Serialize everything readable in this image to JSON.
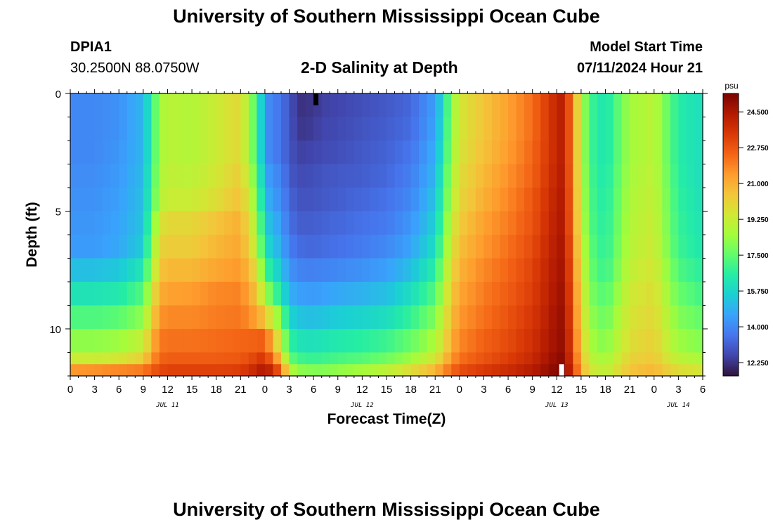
{
  "header": {
    "title": "University of Southern Mississippi Ocean Cube",
    "station_id": "DPIA1",
    "coordinates": "30.2500N  88.0750W",
    "subtitle": "2-D Salinity at Depth",
    "model_start_label": "Model Start Time",
    "model_start_value": "07/11/2024 Hour 21"
  },
  "footer": {
    "title": "University of Southern Mississippi Ocean Cube"
  },
  "colorbar": {
    "unit": "psu",
    "ticks": [
      "24.500",
      "22.750",
      "21.000",
      "19.250",
      "17.500",
      "15.750",
      "14.000",
      "12.250"
    ],
    "tick_values": [
      24.5,
      22.75,
      21.0,
      19.25,
      17.5,
      15.75,
      14.0,
      12.25
    ],
    "range": [
      11.6,
      25.4
    ],
    "colors": [
      "#30123b",
      "#4145ab",
      "#4675ed",
      "#39a2fc",
      "#1bcfd4",
      "#24eca6",
      "#61fc6c",
      "#a4fc3b",
      "#d1e834",
      "#f3c63a",
      "#fe9b2d",
      "#f36315",
      "#d93806",
      "#b11901",
      "#7a0402"
    ]
  },
  "chart_data": {
    "type": "heatmap",
    "title": "2-D Salinity at Depth",
    "xlabel": "Forecast Time(Z)",
    "ylabel": "Depth (ft)",
    "value_unit": "psu",
    "x_tick_labels": [
      "0",
      "3",
      "6",
      "9",
      "12",
      "15",
      "18",
      "21",
      "0",
      "3",
      "6",
      "9",
      "12",
      "15",
      "18",
      "21",
      "0",
      "3",
      "6",
      "9",
      "12",
      "15",
      "18",
      "21",
      "0",
      "3",
      "6"
    ],
    "x_range_hours": [
      0,
      78
    ],
    "day_labels": [
      {
        "text": "JUL 11",
        "hour": 12
      },
      {
        "text": "JUL 12",
        "hour": 36
      },
      {
        "text": "JUL 13",
        "hour": 60
      },
      {
        "text": "JUL 14",
        "hour": 75
      }
    ],
    "y_tick_labels": [
      "0",
      "5",
      "10"
    ],
    "y_tick_values": [
      0,
      5,
      10
    ],
    "y_range_ft": [
      0,
      12
    ],
    "depth_levels_ft": [
      0,
      1,
      2,
      3,
      4,
      5,
      6,
      7,
      8,
      9,
      10,
      11,
      11.5
    ],
    "sample_hours": [
      0,
      3,
      6,
      9,
      10,
      11,
      12,
      15,
      18,
      21,
      23,
      24,
      26,
      27,
      28,
      30,
      31,
      33,
      36,
      39,
      42,
      45,
      46,
      47,
      48,
      51,
      54,
      57,
      60,
      61,
      62,
      63,
      64,
      66,
      69,
      72,
      75,
      78
    ],
    "profiles": [
      {
        "depth_ft": 0,
        "salinity": [
          14.0,
          14.0,
          14.2,
          15.0,
          16.6,
          18.5,
          19.0,
          18.8,
          19.3,
          20.0,
          17.0,
          14.2,
          13.5,
          13.0,
          12.2,
          12.3,
          12.5,
          12.6,
          12.8,
          13.0,
          13.3,
          14.5,
          16.0,
          18.2,
          19.5,
          20.5,
          21.3,
          22.3,
          24.0,
          24.4,
          21.3,
          19.0,
          17.0,
          16.2,
          18.5,
          19.0,
          16.5,
          16.0
        ]
      },
      {
        "depth_ft": 1,
        "salinity": [
          14.0,
          14.0,
          14.2,
          15.0,
          16.6,
          18.5,
          19.0,
          18.8,
          19.3,
          20.0,
          17.0,
          14.2,
          13.5,
          13.0,
          12.3,
          12.4,
          12.6,
          12.7,
          12.9,
          13.1,
          13.4,
          14.6,
          16.2,
          18.2,
          19.5,
          20.5,
          21.3,
          22.3,
          24.0,
          24.4,
          21.3,
          19.0,
          17.0,
          16.2,
          18.5,
          19.0,
          16.5,
          16.0
        ]
      },
      {
        "depth_ft": 2,
        "salinity": [
          14.0,
          14.0,
          14.3,
          15.0,
          16.6,
          18.5,
          19.0,
          18.8,
          19.3,
          20.0,
          17.0,
          14.2,
          13.5,
          13.0,
          12.5,
          12.6,
          12.7,
          12.8,
          13.0,
          13.2,
          13.6,
          14.8,
          16.4,
          18.3,
          19.6,
          20.6,
          21.4,
          22.4,
          24.0,
          24.4,
          21.3,
          19.0,
          17.0,
          16.2,
          18.5,
          19.0,
          16.5,
          16.0
        ]
      },
      {
        "depth_ft": 3,
        "salinity": [
          14.1,
          14.1,
          14.4,
          15.1,
          16.8,
          18.6,
          19.1,
          19.0,
          19.5,
          20.3,
          17.5,
          14.6,
          13.8,
          13.1,
          12.7,
          12.8,
          12.9,
          13.0,
          13.1,
          13.3,
          13.8,
          15.0,
          16.8,
          18.5,
          19.8,
          20.8,
          21.6,
          22.5,
          24.1,
          24.4,
          21.4,
          19.1,
          17.1,
          16.3,
          18.6,
          19.1,
          16.6,
          16.0
        ]
      },
      {
        "depth_ft": 4,
        "salinity": [
          14.2,
          14.2,
          14.5,
          15.2,
          17.0,
          18.8,
          19.3,
          19.3,
          19.8,
          20.6,
          18.0,
          15.0,
          14.0,
          13.3,
          12.9,
          12.9,
          13.0,
          13.1,
          13.3,
          13.5,
          14.0,
          15.3,
          17.0,
          18.8,
          20.0,
          21.0,
          21.8,
          22.7,
          24.2,
          24.5,
          21.5,
          19.2,
          17.2,
          16.4,
          18.7,
          19.2,
          16.7,
          16.1
        ]
      },
      {
        "depth_ft": 5,
        "salinity": [
          14.3,
          14.3,
          14.6,
          15.3,
          17.5,
          19.5,
          20.0,
          20.0,
          20.5,
          21.0,
          18.6,
          15.5,
          14.4,
          13.5,
          13.1,
          13.1,
          13.2,
          13.3,
          13.5,
          13.7,
          14.3,
          15.6,
          17.4,
          19.2,
          20.3,
          21.3,
          22.0,
          22.8,
          24.3,
          24.5,
          21.6,
          19.3,
          17.3,
          16.5,
          18.8,
          19.3,
          16.8,
          16.2
        ]
      },
      {
        "depth_ft": 6,
        "salinity": [
          14.4,
          14.4,
          14.7,
          15.5,
          18.0,
          20.0,
          20.3,
          20.3,
          20.8,
          21.2,
          19.0,
          16.0,
          14.7,
          13.8,
          13.4,
          13.3,
          13.4,
          13.5,
          13.7,
          14.0,
          14.6,
          16.0,
          17.8,
          19.5,
          20.6,
          21.5,
          22.2,
          23.0,
          24.4,
          24.6,
          21.8,
          19.5,
          17.5,
          16.6,
          18.9,
          19.4,
          16.9,
          16.3
        ]
      },
      {
        "depth_ft": 7,
        "salinity": [
          15.2,
          15.2,
          15.4,
          16.3,
          18.5,
          20.4,
          20.8,
          20.8,
          21.2,
          21.5,
          19.8,
          17.0,
          15.3,
          14.3,
          13.9,
          13.8,
          13.9,
          14.0,
          14.2,
          14.5,
          15.2,
          16.6,
          18.3,
          19.9,
          20.9,
          21.8,
          22.4,
          23.2,
          24.5,
          24.7,
          22.0,
          19.7,
          17.7,
          16.8,
          19.1,
          19.6,
          17.2,
          16.6
        ]
      },
      {
        "depth_ft": 8,
        "salinity": [
          16.2,
          16.2,
          16.4,
          17.3,
          19.3,
          21.0,
          21.3,
          21.4,
          21.8,
          21.9,
          20.5,
          18.5,
          16.2,
          14.9,
          14.5,
          14.4,
          14.5,
          14.7,
          14.9,
          15.2,
          16.0,
          17.3,
          18.8,
          20.3,
          21.2,
          22.0,
          22.6,
          23.3,
          24.6,
          24.8,
          22.2,
          20.0,
          18.0,
          17.2,
          19.4,
          19.8,
          17.6,
          17.0
        ]
      },
      {
        "depth_ft": 9,
        "salinity": [
          17.2,
          17.2,
          17.4,
          18.2,
          20.0,
          21.5,
          21.8,
          21.8,
          22.0,
          22.1,
          21.3,
          20.4,
          17.8,
          15.8,
          15.3,
          15.2,
          15.3,
          15.5,
          15.7,
          16.0,
          16.8,
          18.0,
          19.3,
          20.6,
          21.5,
          22.2,
          22.8,
          23.5,
          24.7,
          24.9,
          22.4,
          20.2,
          18.3,
          17.6,
          19.6,
          20.0,
          18.0,
          17.5
        ]
      },
      {
        "depth_ft": 10,
        "salinity": [
          18.2,
          18.2,
          18.4,
          19.2,
          20.8,
          22.0,
          22.2,
          22.2,
          22.3,
          22.4,
          22.5,
          22.6,
          19.0,
          16.8,
          16.2,
          16.1,
          16.2,
          16.4,
          16.6,
          16.9,
          17.6,
          18.7,
          19.8,
          21.0,
          21.8,
          22.5,
          23.0,
          23.7,
          24.8,
          25.0,
          22.6,
          20.5,
          18.6,
          18.0,
          19.8,
          20.2,
          18.4,
          18.0
        ]
      },
      {
        "depth_ft": 11,
        "salinity": [
          19.3,
          19.3,
          19.5,
          20.2,
          21.5,
          22.4,
          22.6,
          22.6,
          22.6,
          22.7,
          23.2,
          23.6,
          20.5,
          17.6,
          17.0,
          16.8,
          16.9,
          17.1,
          17.3,
          17.7,
          18.4,
          19.5,
          20.5,
          21.5,
          22.2,
          22.8,
          23.3,
          23.9,
          25.0,
          25.1,
          22.9,
          20.8,
          19.0,
          18.5,
          20.1,
          20.4,
          19.0,
          18.6
        ]
      },
      {
        "depth_ft": 11.5,
        "salinity": [
          21.5,
          21.6,
          21.8,
          22.0,
          22.6,
          23.0,
          23.2,
          23.2,
          23.2,
          23.3,
          24.0,
          24.6,
          22.5,
          19.0,
          18.2,
          18.0,
          18.0,
          18.2,
          18.5,
          19.0,
          19.8,
          20.8,
          21.6,
          22.3,
          22.9,
          23.4,
          23.8,
          24.3,
          25.2,
          25.3,
          23.3,
          21.2,
          19.5,
          19.0,
          20.5,
          20.8,
          19.8,
          19.5
        ]
      }
    ],
    "markers": [
      {
        "hour": 30.3,
        "depth_from_ft": 0,
        "depth_to_ft": 0.5,
        "color": "#000000"
      },
      {
        "hour": 60.6,
        "depth_from_ft": 11.5,
        "depth_to_ft": 12,
        "color": "#ffffff"
      }
    ]
  }
}
